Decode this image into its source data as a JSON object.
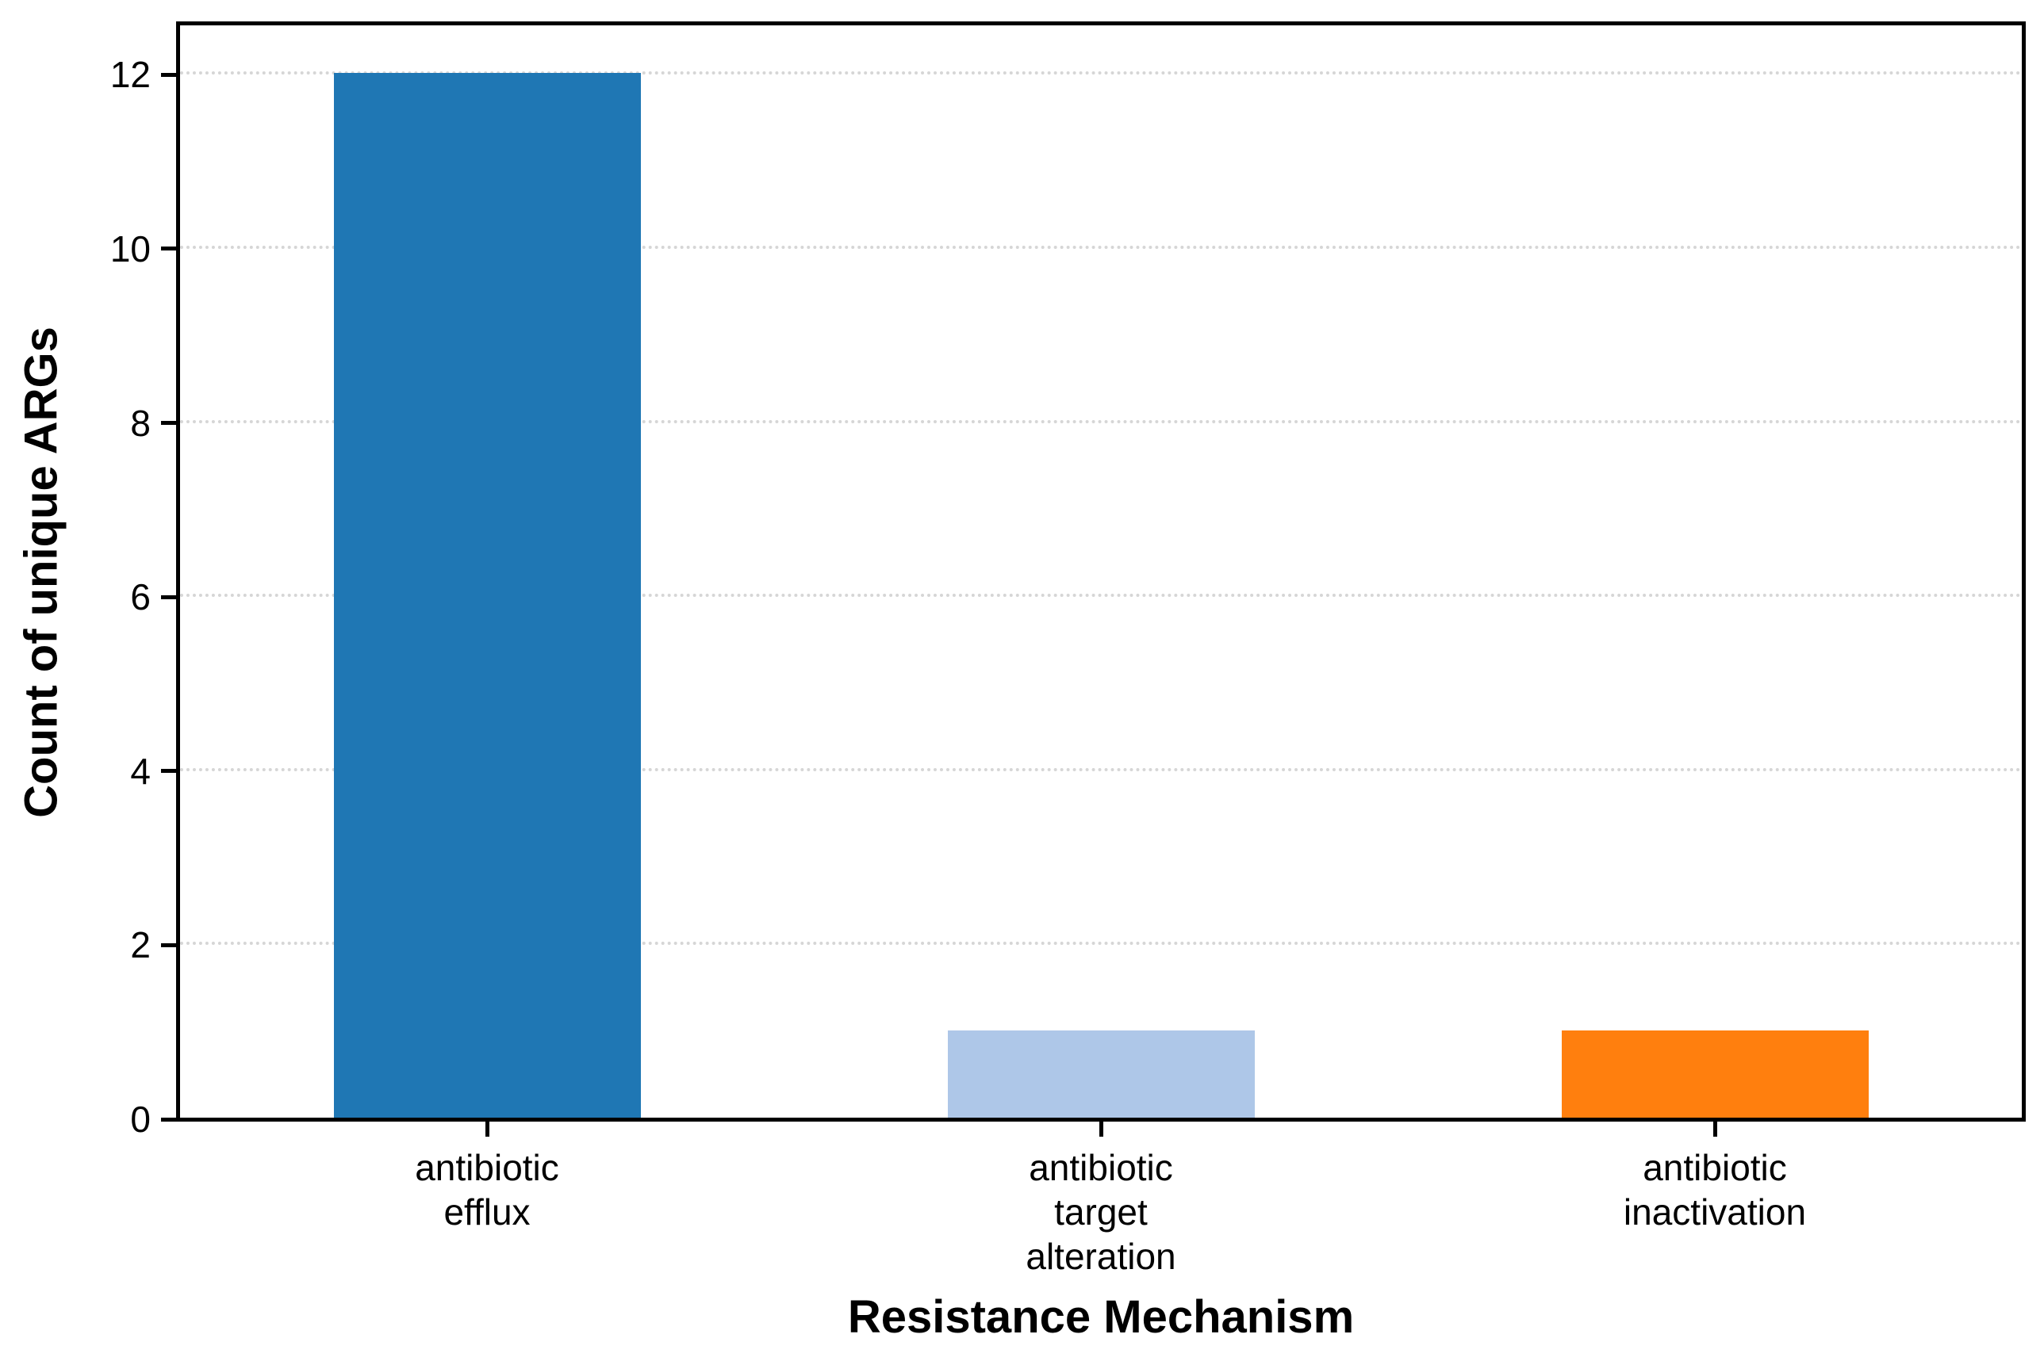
{
  "chart_data": {
    "type": "bar",
    "title": "",
    "categories": [
      "antibiotic\nefflux",
      "antibiotic\ntarget\nalteration",
      "antibiotic\ninactivation"
    ],
    "values": [
      12,
      1,
      1
    ],
    "bar_colors": [
      "#1f77b4",
      "#aec7e8",
      "#ff7f0e"
    ],
    "xlabel": "Resistance Mechanism",
    "ylabel": "Count of unique ARGs",
    "yticks": [
      0,
      2,
      4,
      6,
      8,
      10,
      12
    ],
    "ylim": [
      0,
      12.55
    ],
    "bar_width_fraction": 0.5,
    "grid": "horizontal dotted",
    "gridline_color": "#d6d6d6",
    "spine_color": "#000000",
    "background_color": "#ffffff",
    "legend": "none"
  }
}
